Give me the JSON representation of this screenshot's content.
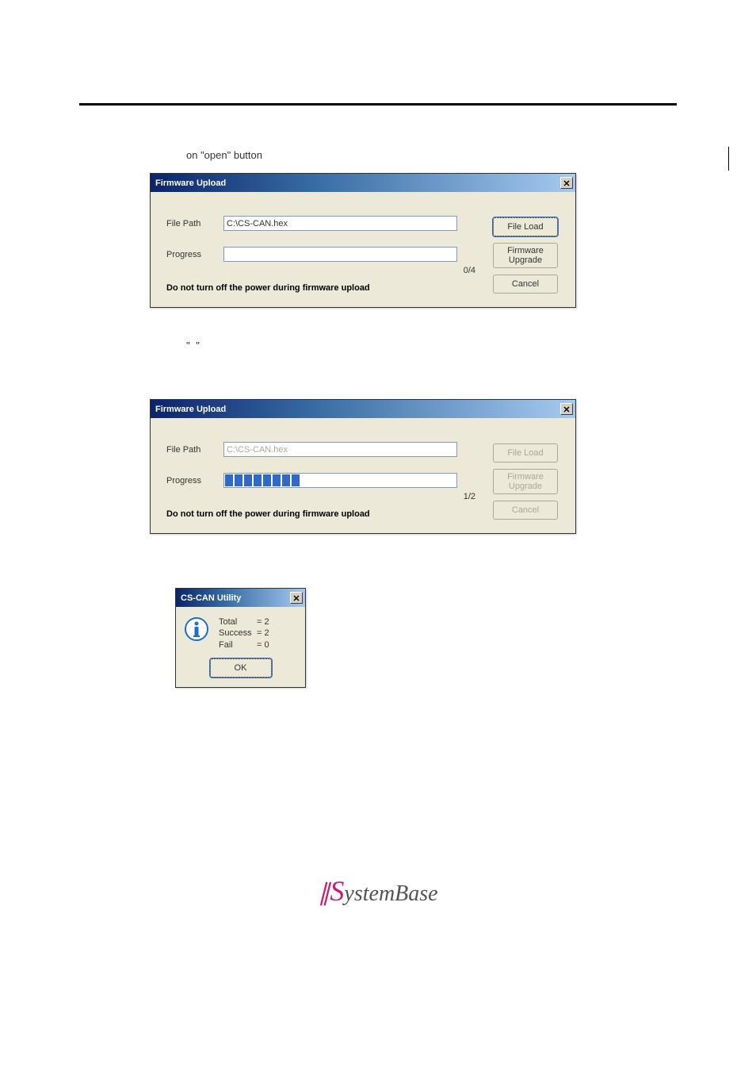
{
  "page": {
    "intro_text": "on \"open\" button",
    "quote_text": "\"                          \""
  },
  "dialog1": {
    "title": "Firmware Upload",
    "file_path_label": "File Path",
    "file_path_value": "C:\\CS-CAN.hex",
    "progress_label": "Progress",
    "progress_percent": 0,
    "progress_count": "0/4",
    "warning": "Do not turn off the power during firmware upload",
    "buttons": {
      "file_load": "File Load",
      "firmware_upgrade": "Firmware\nUpgrade",
      "cancel": "Cancel"
    },
    "colors": {
      "titlebar_start": "#0a246a",
      "titlebar_end": "#a6caf0",
      "dialog_bg": "#ece9d8",
      "input_border": "#7f9db9"
    }
  },
  "dialog2": {
    "title": "Firmware Upload",
    "file_path_label": "File Path",
    "file_path_value": "C:\\CS-CAN.hex",
    "progress_label": "Progress",
    "progress_segments": 8,
    "progress_count": "1/2",
    "warning": "Do not turn off the power during firmware upload",
    "buttons": {
      "file_load": "File Load",
      "firmware_upgrade": "Firmware\nUpgrade",
      "cancel": "Cancel"
    }
  },
  "msgbox": {
    "title": "CS-CAN Utility",
    "rows": [
      {
        "key": "Total",
        "val": "= 2"
      },
      {
        "key": "Success",
        "val": "= 2"
      },
      {
        "key": "Fail",
        "val": "= 0"
      }
    ],
    "ok": "OK"
  },
  "footer": {
    "brand_s": "S",
    "brand_rest": "ystemBase"
  }
}
